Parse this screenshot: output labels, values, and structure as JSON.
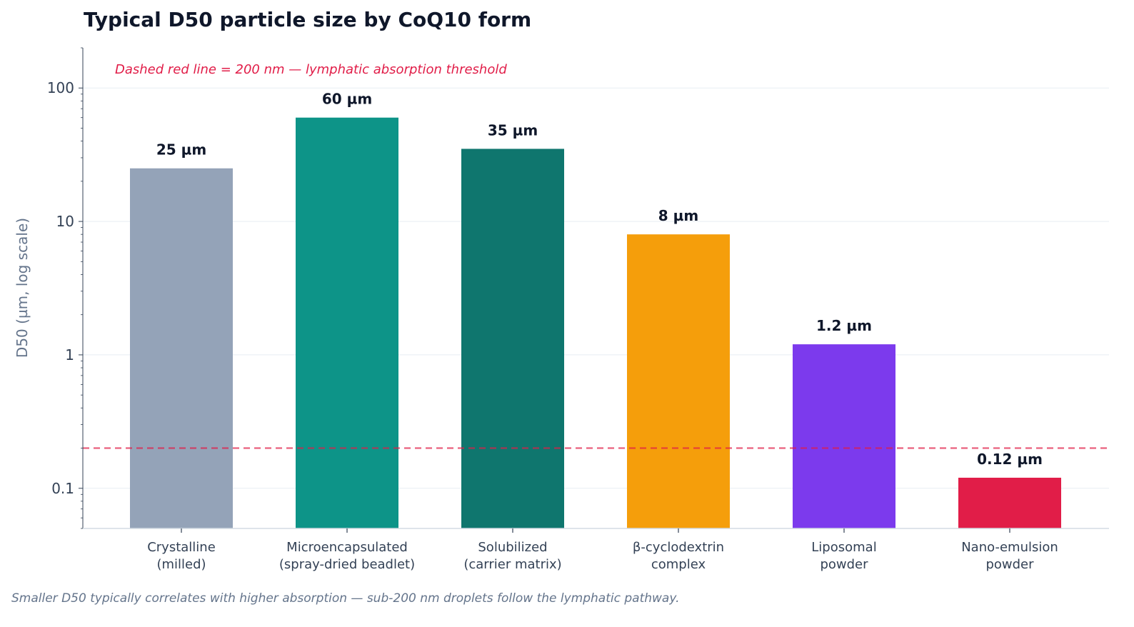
{
  "chart_data": {
    "type": "bar",
    "title": "Typical D50 particle size by CoQ10 form",
    "annotation": "Dashed red line = 200 nm — lymphatic absorption threshold",
    "ylabel": "D50 (µm, log scale)",
    "xlabel": "",
    "yscale": "log",
    "ylim": [
      0.05,
      200
    ],
    "grid": true,
    "yticks": [
      {
        "value": 0.1,
        "label": "0.1"
      },
      {
        "value": 1,
        "label": "1"
      },
      {
        "value": 10,
        "label": "10"
      },
      {
        "value": 100,
        "label": "100"
      }
    ],
    "categories": [
      [
        "Crystalline",
        "(milled)"
      ],
      [
        "Microencapsulated",
        "(spray-dried beadlet)"
      ],
      [
        "Solubilized",
        "(carrier matrix)"
      ],
      [
        "β-cyclodextrin",
        "complex"
      ],
      [
        "Liposomal",
        "powder"
      ],
      [
        "Nano-emulsion",
        "powder"
      ]
    ],
    "values": [
      25,
      60,
      35,
      8,
      1.2,
      0.12
    ],
    "value_labels": [
      "25 µm",
      "60 µm",
      "35 µm",
      "8 µm",
      "1.2 µm",
      "0.12 µm"
    ],
    "colors": [
      "#94a3b8",
      "#0d9488",
      "#0f766e",
      "#f59e0b",
      "#7c3aed",
      "#e11d48"
    ],
    "threshold": {
      "value": 0.2,
      "color": "#e11d48"
    },
    "caption": "Smaller D50 typically correlates with higher absorption — sub-200 nm droplets follow the lymphatic pathway."
  }
}
